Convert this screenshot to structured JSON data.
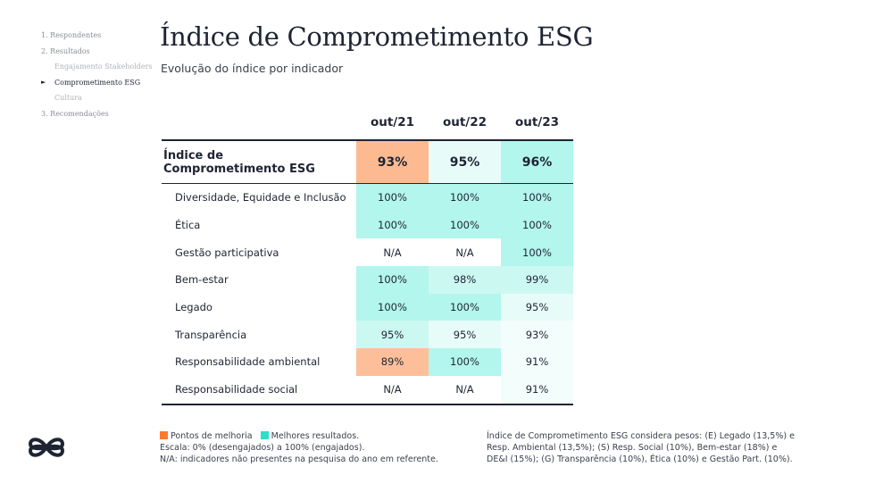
{
  "nav": {
    "items": [
      {
        "label": "1. Respondentes",
        "level": 0,
        "active": false
      },
      {
        "label": "2. Resultados",
        "level": 0,
        "active": false
      },
      {
        "label": "Engajamento Stakeholders",
        "level": 1,
        "active": false
      },
      {
        "label": "Comprometimento ESG",
        "level": 1,
        "active": true
      },
      {
        "label": "Cultura",
        "level": 1,
        "active": false
      },
      {
        "label": "3. Recomendações",
        "level": 0,
        "active": false
      }
    ]
  },
  "page": {
    "title": "Índice de Comprometimento ESG",
    "subtitle": "Evolução do índice por indicador"
  },
  "colors": {
    "orange_strong": "#fdba91",
    "orange": "#fdbf9a",
    "teal_strong": "#8ef0e3",
    "teal": "#b2f6ed",
    "teal_light": "#ccf8f2",
    "teal_faint": "#e7fcf9",
    "teal_palest": "#f3fdfc",
    "white": "#ffffff",
    "legend_orange": "#ff7a2e",
    "legend_teal": "#2de0c8",
    "navy": "#1f2433"
  },
  "table": {
    "columns": [
      "out/21",
      "out/22",
      "out/23"
    ],
    "main": {
      "label": "Índice de Comprometimento ESG",
      "values": [
        "93%",
        "95%",
        "96%"
      ],
      "bg": [
        "#fdba91",
        "#e7fcf9",
        "#b2f6ed"
      ]
    },
    "rows": [
      {
        "label": "Diversidade, Equidade e Inclusão",
        "values": [
          "100%",
          "100%",
          "100%"
        ],
        "bg": [
          "#b2f6ed",
          "#b2f6ed",
          "#b2f6ed"
        ]
      },
      {
        "label": "Ética",
        "values": [
          "100%",
          "100%",
          "100%"
        ],
        "bg": [
          "#b2f6ed",
          "#b2f6ed",
          "#b2f6ed"
        ]
      },
      {
        "label": "Gestão participativa",
        "values": [
          "N/A",
          "N/A",
          "100%"
        ],
        "bg": [
          "#ffffff",
          "#ffffff",
          "#b2f6ed"
        ]
      },
      {
        "label": "Bem-estar",
        "values": [
          "100%",
          "98%",
          "99%"
        ],
        "bg": [
          "#b2f6ed",
          "#ccf8f2",
          "#ccf8f2"
        ]
      },
      {
        "label": "Legado",
        "values": [
          "100%",
          "100%",
          "95%"
        ],
        "bg": [
          "#b2f6ed",
          "#b2f6ed",
          "#e7fcf9"
        ]
      },
      {
        "label": "Transparência",
        "values": [
          "95%",
          "95%",
          "93%"
        ],
        "bg": [
          "#ccf8f2",
          "#e7fcf9",
          "#f3fdfc"
        ]
      },
      {
        "label": "Responsabilidade ambiental",
        "values": [
          "89%",
          "100%",
          "91%"
        ],
        "bg": [
          "#fdbf9a",
          "#b2f6ed",
          "#f3fdfc"
        ]
      },
      {
        "label": "Responsabilidade social",
        "values": [
          "N/A",
          "N/A",
          "91%"
        ],
        "bg": [
          "#ffffff",
          "#ffffff",
          "#f3fdfc"
        ]
      }
    ]
  },
  "legend": {
    "improve": "Pontos de melhoria",
    "best": "Melhores resultados.",
    "scale": "Escala: 0% (desengajados) a 100% (engajados).",
    "na": "N/A: indicadores não presentes na pesquisa do ano em referente."
  },
  "note": {
    "line1": "Índice de Comprometimento ESG considera pesos: (E) Legado (13,5%) e",
    "line2": "Resp. Ambiental (13,5%); (S) Resp. Social (10%), Bem-estar (18%) e",
    "line3": "DE&I (15%); (G) Transparência (10%), Ética (10%) e Gestão Part. (10%)."
  },
  "logo": {
    "icon": "infinity-knot-logo"
  }
}
